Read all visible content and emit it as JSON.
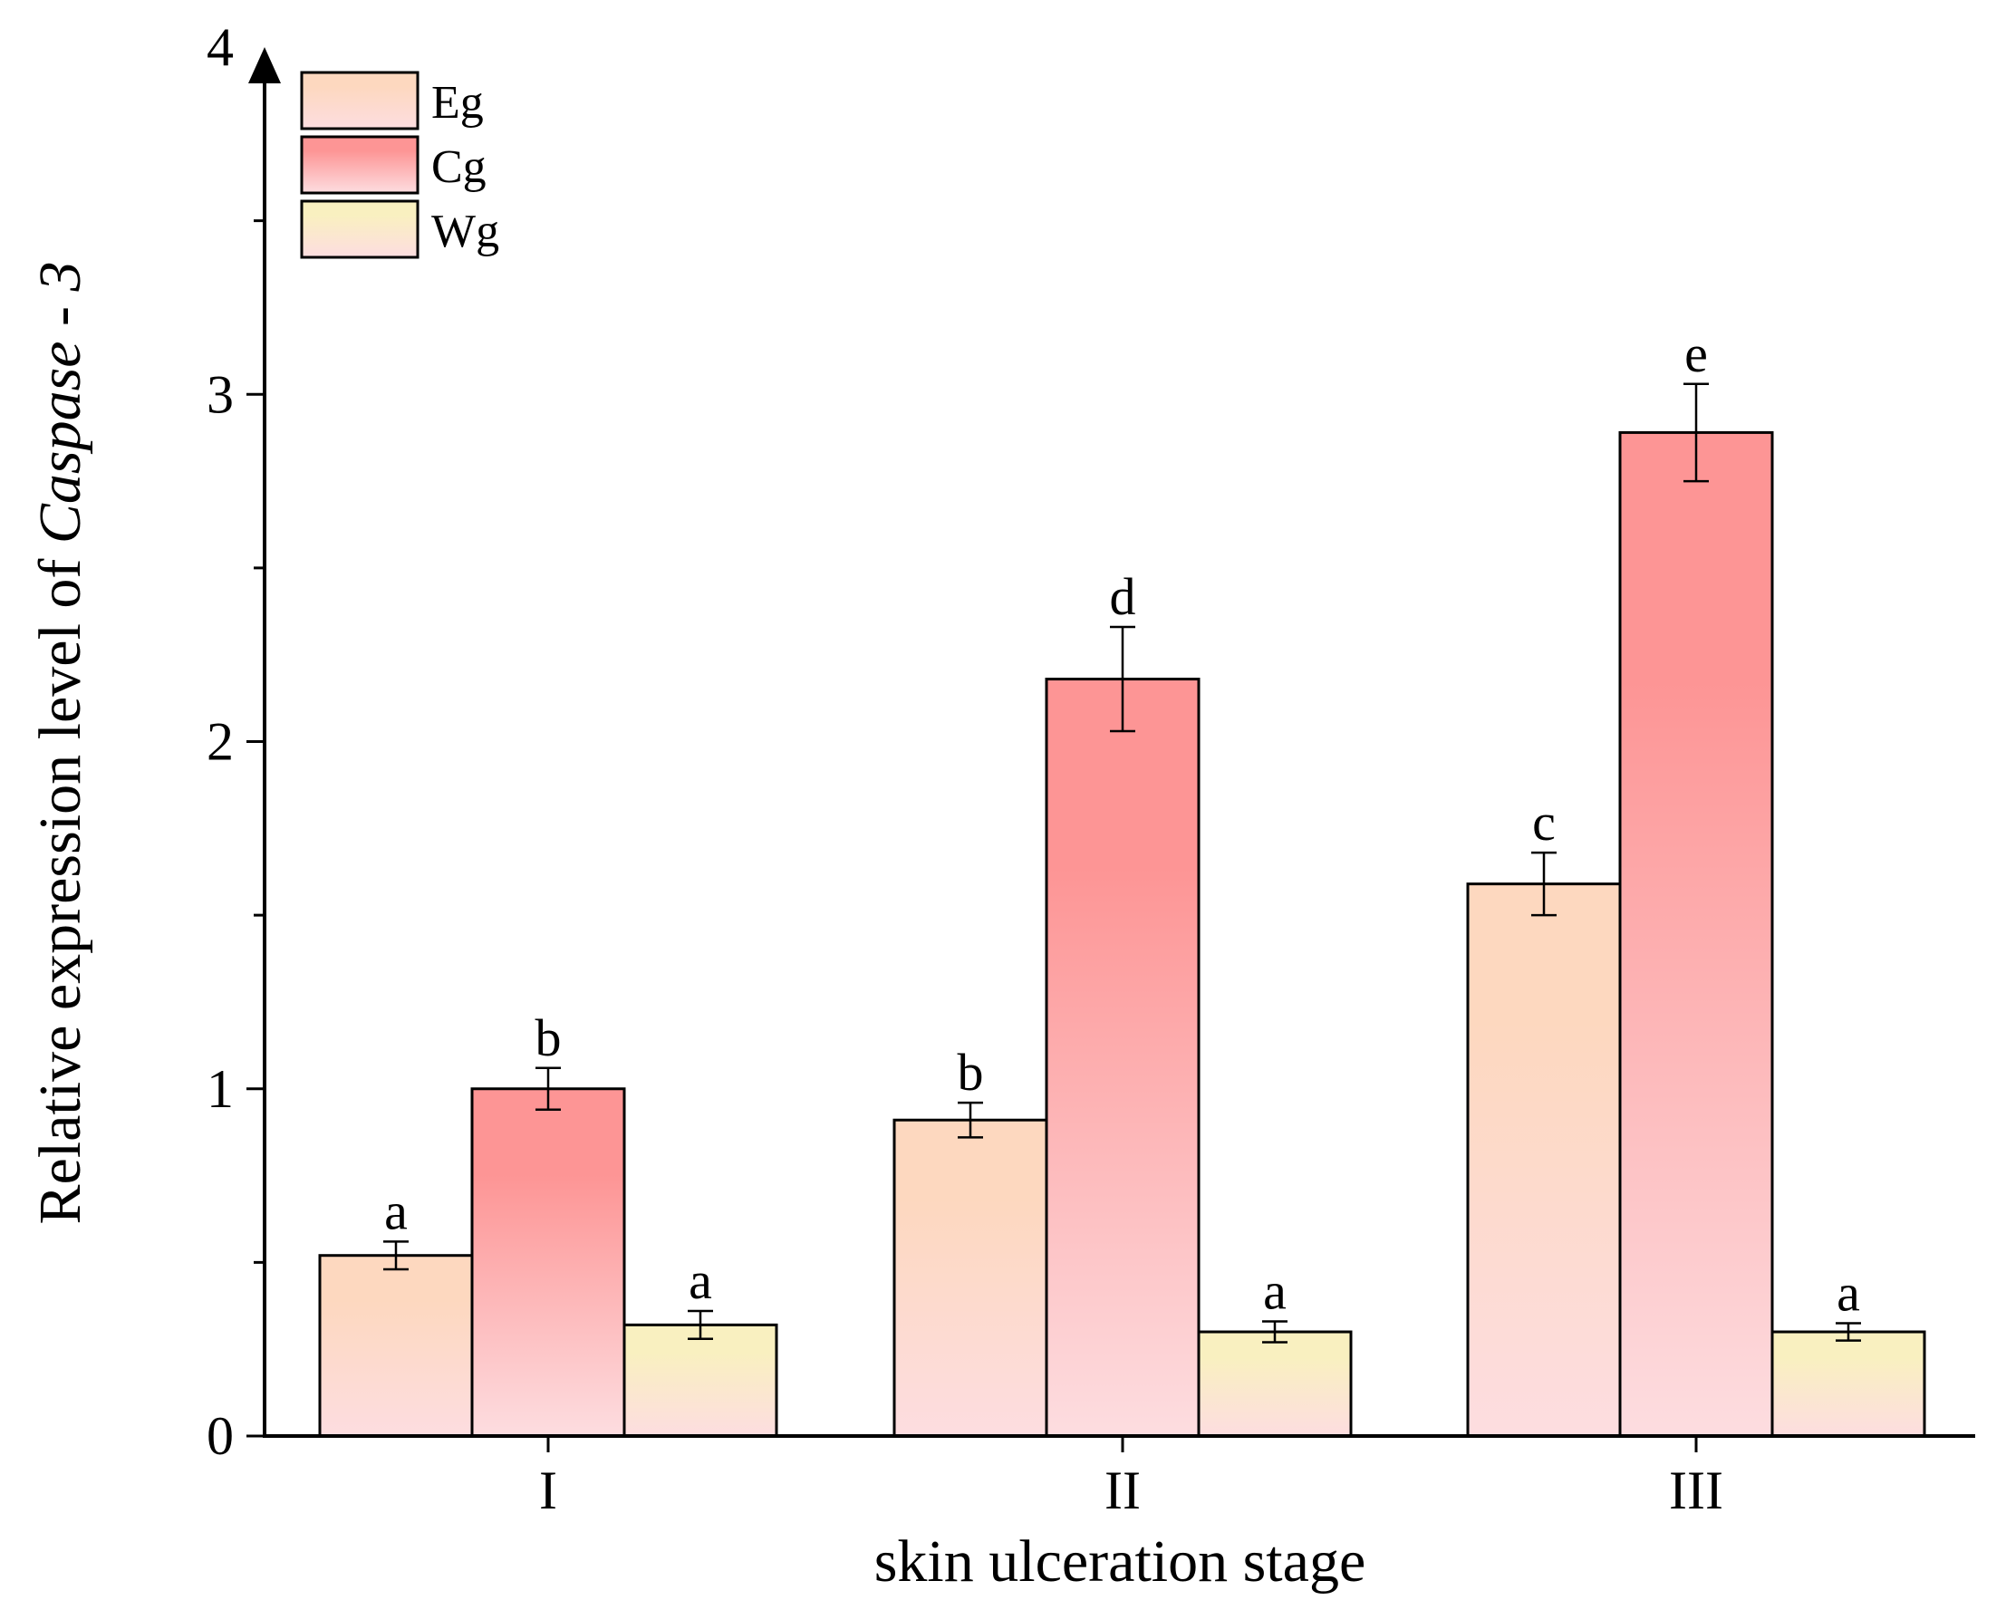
{
  "chart_data": {
    "type": "bar",
    "title": "",
    "xlabel": "skin ulceration stage",
    "ylabel_prefix": "Relative expression level of ",
    "ylabel_italic": "Caspase",
    "ylabel_suffix": " - 3",
    "ylim": [
      0,
      4
    ],
    "yticks": [
      {
        "value": 0,
        "label": "0"
      },
      {
        "value": 1,
        "label": "1"
      },
      {
        "value": 2,
        "label": "2"
      },
      {
        "value": 3,
        "label": "3"
      },
      {
        "value": 4,
        "label": "4"
      }
    ],
    "yminor": [
      0.5,
      1.5,
      2.5,
      3.5
    ],
    "categories": [
      "I",
      "II",
      "III"
    ],
    "legend_position": "top-left",
    "series": [
      {
        "name": "Eg",
        "gradient": [
          "#fdd8bf",
          "#fddde0"
        ],
        "values": [
          0.52,
          0.91,
          1.59
        ],
        "errors": [
          0.04,
          0.05,
          0.09
        ],
        "letters": [
          "a",
          "b",
          "c"
        ]
      },
      {
        "name": "Cg",
        "gradient": [
          "#fd9595",
          "#fddde0"
        ],
        "values": [
          1.0,
          2.18,
          2.89
        ],
        "errors": [
          0.06,
          0.15,
          0.14
        ],
        "letters": [
          "b",
          "d",
          "e"
        ]
      },
      {
        "name": "Wg",
        "gradient": [
          "#f9f0c0",
          "#fddde0"
        ],
        "values": [
          0.32,
          0.3,
          0.3
        ],
        "errors": [
          0.04,
          0.03,
          0.025
        ],
        "letters": [
          "a",
          "a",
          "a"
        ]
      }
    ]
  }
}
